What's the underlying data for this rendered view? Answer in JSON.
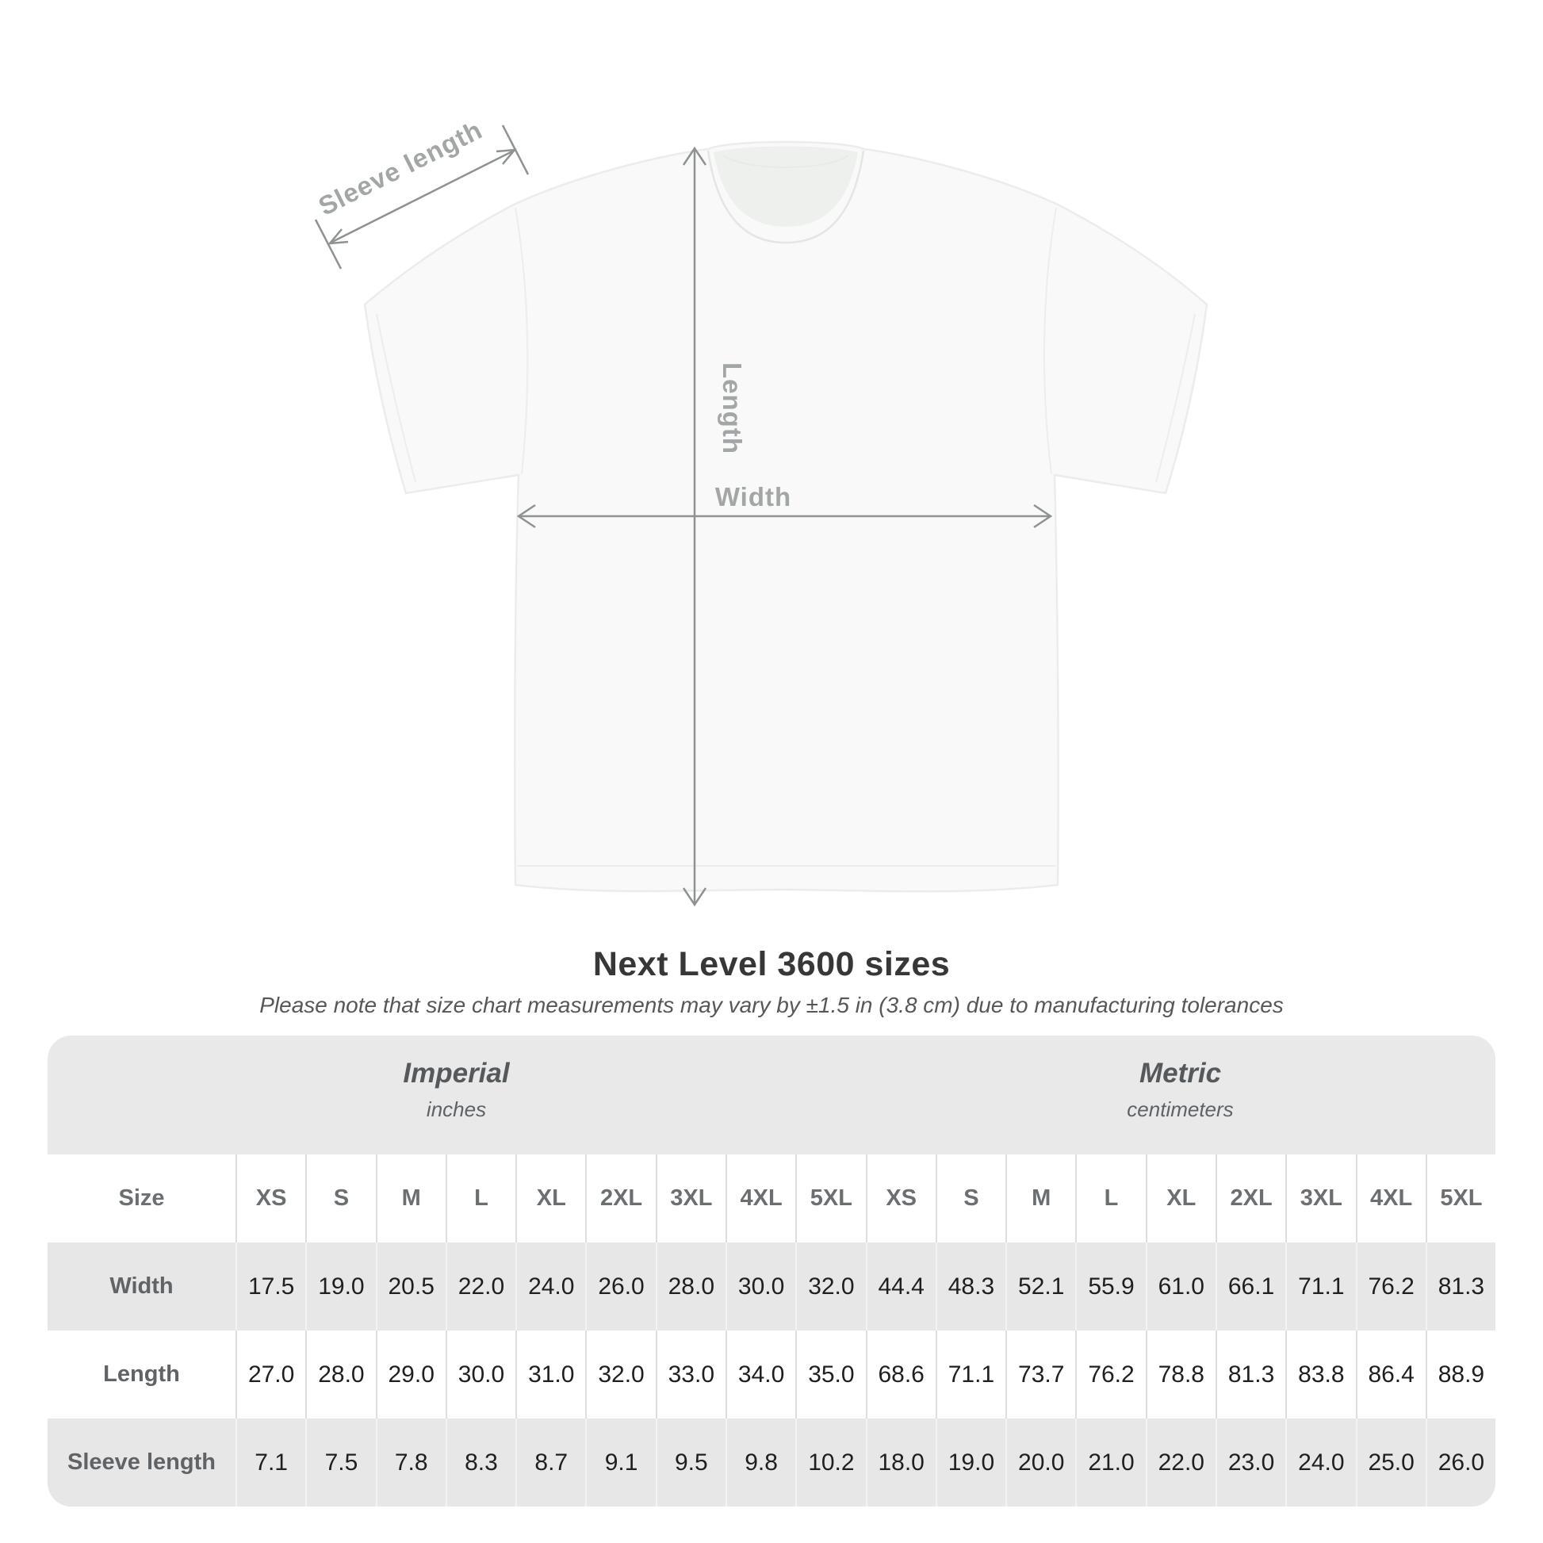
{
  "diagram": {
    "sleeve_length_label": "Sleeve length",
    "length_label": "Length",
    "width_label": "Width",
    "line_color": "#8e9292",
    "label_color": "#a3a6a6"
  },
  "title": "Next Level 3600 sizes",
  "subtitle": "Please note that size chart measurements may vary by ±1.5 in (3.8 cm) due to manufacturing tolerances",
  "table": {
    "unit_groups": [
      {
        "name": "Imperial",
        "unit": "inches"
      },
      {
        "name": "Metric",
        "unit": "centimeters"
      }
    ],
    "size_header": "Size",
    "sizes": [
      "XS",
      "S",
      "M",
      "L",
      "XL",
      "2XL",
      "3XL",
      "4XL",
      "5XL"
    ],
    "rows": [
      {
        "label": "Width",
        "imperial": [
          "17.5",
          "19.0",
          "20.5",
          "22.0",
          "24.0",
          "26.0",
          "28.0",
          "30.0",
          "32.0"
        ],
        "metric": [
          "44.4",
          "48.3",
          "52.1",
          "55.9",
          "61.0",
          "66.1",
          "71.1",
          "76.2",
          "81.3"
        ]
      },
      {
        "label": "Length",
        "imperial": [
          "27.0",
          "28.0",
          "29.0",
          "30.0",
          "31.0",
          "32.0",
          "33.0",
          "34.0",
          "35.0"
        ],
        "metric": [
          "68.6",
          "71.1",
          "73.7",
          "76.2",
          "78.8",
          "81.3",
          "83.8",
          "86.4",
          "88.9"
        ]
      },
      {
        "label": "Sleeve length",
        "imperial": [
          "7.1",
          "7.5",
          "7.8",
          "8.3",
          "8.7",
          "9.1",
          "9.5",
          "9.8",
          "10.2"
        ],
        "metric": [
          "18.0",
          "19.0",
          "20.0",
          "21.0",
          "22.0",
          "23.0",
          "24.0",
          "25.0",
          "26.0"
        ]
      }
    ]
  },
  "colors": {
    "table_bg": "#e9e9e9",
    "row_gray": "#e7e7e7",
    "row_white": "#ffffff",
    "value_text": "#1e1f20",
    "header_text": "#6b6f71",
    "title_text": "#373737"
  }
}
